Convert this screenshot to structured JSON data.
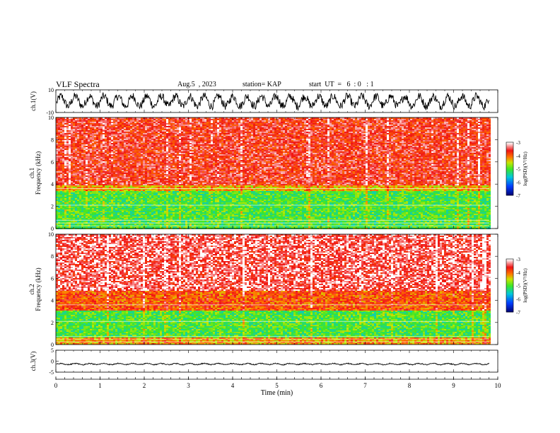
{
  "header": {
    "title": "VLF Spectra",
    "date": "Aug.5  , 2023",
    "station": "station= KAP",
    "start_ut": "start  UT  =   6  : 0   : 1"
  },
  "chart_data": [
    {
      "type": "line",
      "panel": "waveform-ch1",
      "ylabel": "ch.1(V)",
      "ylim": [
        -10,
        10
      ],
      "yticks": [
        "10",
        "-10"
      ],
      "xlim": [
        0,
        10
      ],
      "description_values": {
        "mean": 0,
        "amplitude_range": [
          -8,
          8
        ]
      }
    },
    {
      "type": "heatmap",
      "panel": "spectrogram-ch1",
      "ylabel": "ch.1\nFrequency (kHz)",
      "ylim": [
        0,
        10
      ],
      "yticks": [
        "0",
        "2",
        "4",
        "6",
        "8",
        "10"
      ],
      "xlim": [
        0,
        9.83
      ],
      "colorbar": {
        "label": "log(PSD)(V²/Hz)",
        "range": [
          -7,
          -3
        ],
        "ticks": [
          "-3",
          "-4",
          "-5",
          "-6",
          "-7"
        ]
      },
      "bands": [
        {
          "from": 0.0,
          "to": 0.9,
          "level": -5.0
        },
        {
          "from": 0.9,
          "to": 3.4,
          "level": -5.0
        },
        {
          "from": 3.4,
          "to": 4.0,
          "level": -4.3
        },
        {
          "from": 4.0,
          "to": 10.0,
          "level": -3.6
        }
      ]
    },
    {
      "type": "heatmap",
      "panel": "spectrogram-ch2",
      "ylabel": "ch.2\nFrequency (kHz)",
      "ylim": [
        0,
        10
      ],
      "yticks": [
        "0",
        "2",
        "4",
        "6",
        "8",
        "10"
      ],
      "xlim": [
        0,
        9.83
      ],
      "colorbar": {
        "label": "log(PSD)(V²/Hz)",
        "range": [
          -7,
          -3
        ],
        "ticks": [
          "-3",
          "-4",
          "-5",
          "-6",
          "-7"
        ]
      },
      "bands": [
        {
          "from": 0.0,
          "to": 0.7,
          "level": -4.2
        },
        {
          "from": 0.7,
          "to": 3.2,
          "level": -5.0
        },
        {
          "from": 3.2,
          "to": 5.0,
          "level": -3.9
        },
        {
          "from": 5.0,
          "to": 10.0,
          "level": -3.4
        }
      ]
    },
    {
      "type": "line",
      "panel": "waveform-ch3",
      "ylabel": "ch.3(V)",
      "ylim": [
        -5,
        5
      ],
      "yticks": [
        "5",
        "0",
        "-5"
      ],
      "xlim": [
        0,
        10
      ],
      "description_values": {
        "mean": -1.3,
        "amplitude_range": [
          -1.8,
          -0.8
        ]
      }
    }
  ],
  "xaxis": {
    "label": "Time  (min)",
    "ticks": [
      "0",
      "1",
      "2",
      "3",
      "4",
      "5",
      "6",
      "7",
      "8",
      "9",
      "10"
    ],
    "range": [
      0,
      10
    ]
  }
}
